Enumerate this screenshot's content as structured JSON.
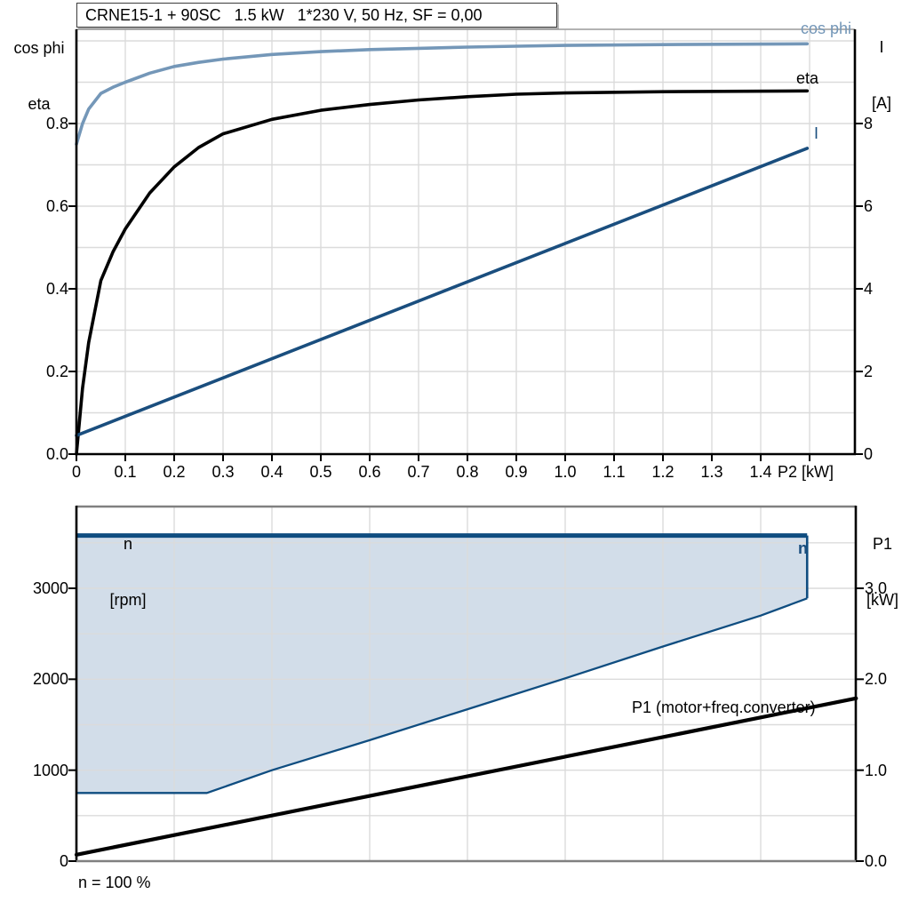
{
  "colors": {
    "cos_phi": "#7497B8",
    "eta": "#000000",
    "current": "#1A4E7E",
    "envelope_border": "#0F4D80",
    "envelope_fill": "#D2DDE9",
    "grid": "#DBDBDB",
    "frame_gray": "#808080",
    "axis_black": "#000000"
  },
  "chart_data": [
    {
      "type": "line",
      "title": "CRNE15-1 + 90SC   1.5 kW   1*230 V, 50 Hz, SF = 0,00",
      "x_axis": {
        "label": "P2 [kW]",
        "min": 0,
        "max": 1.59,
        "tick_values": [
          0,
          0.1,
          0.2,
          0.3,
          0.4,
          0.5,
          0.6,
          0.7,
          0.8,
          0.9,
          1.0,
          1.1,
          1.2,
          1.3,
          1.4,
          1.5
        ],
        "tick_labels": [
          "0",
          "0.1",
          "0.2",
          "0.3",
          "0.4",
          "0.5",
          "0.6",
          "0.7",
          "0.8",
          "0.9",
          "1.0",
          "1.1",
          "1.2",
          "1.3",
          "1.4",
          ""
        ]
      },
      "y_axis_left": {
        "label_line1": "cos phi",
        "label_line2": "eta",
        "min": 0,
        "max": 1.03,
        "tick_values": [
          0,
          0.2,
          0.4,
          0.6,
          0.8
        ],
        "tick_labels": [
          "0.0",
          "0.2",
          "0.4",
          "0.6",
          "0.8"
        ],
        "grid_step": 0.1
      },
      "y_axis_right": {
        "label_line1": "I",
        "label_line2": "[A]",
        "min": 0,
        "max": 10.3,
        "tick_values": [
          0,
          2,
          4,
          6,
          8
        ],
        "tick_labels": [
          "0",
          "2",
          "4",
          "6",
          "8"
        ]
      },
      "grid": true,
      "legend_position": "curve-end-labels",
      "series": [
        {
          "name": "cos phi",
          "axis": "left",
          "color": "#7497B8",
          "x": [
            0,
            0.0125,
            0.025,
            0.05,
            0.075,
            0.1,
            0.15,
            0.2,
            0.25,
            0.3,
            0.4,
            0.5,
            0.6,
            0.7,
            0.8,
            0.9,
            1.0,
            1.2,
            1.495
          ],
          "values": [
            0.75,
            0.8,
            0.835,
            0.873,
            0.888,
            0.9,
            0.922,
            0.938,
            0.948,
            0.956,
            0.967,
            0.974,
            0.979,
            0.982,
            0.985,
            0.987,
            0.989,
            0.991,
            0.993
          ]
        },
        {
          "name": "eta",
          "axis": "left",
          "color": "#000000",
          "x": [
            0,
            0.0125,
            0.025,
            0.05,
            0.075,
            0.1,
            0.15,
            0.2,
            0.25,
            0.3,
            0.4,
            0.5,
            0.6,
            0.7,
            0.8,
            0.9,
            1.0,
            1.2,
            1.495
          ],
          "values": [
            0,
            0.16,
            0.27,
            0.42,
            0.49,
            0.545,
            0.632,
            0.695,
            0.742,
            0.775,
            0.81,
            0.832,
            0.846,
            0.857,
            0.865,
            0.871,
            0.874,
            0.877,
            0.879
          ]
        },
        {
          "name": "I",
          "axis": "right",
          "color": "#1A4E7E",
          "x": [
            0,
            1.495
          ],
          "values": [
            0.45,
            7.4
          ]
        }
      ]
    },
    {
      "type": "area",
      "title": "",
      "x_axis": {
        "label": "",
        "min": 0,
        "max": 1.595,
        "grid_step": 0.2
      },
      "y_axis_left": {
        "label_line1": "n",
        "label_line2": "[rpm]",
        "min": 0,
        "max": 3900,
        "tick_values": [
          0,
          1000,
          2000,
          3000
        ],
        "tick_labels": [
          "0",
          "1000",
          "2000",
          "3000"
        ],
        "grid_step": 500
      },
      "y_axis_right": {
        "label_line1": "P1",
        "label_line2": "[kW]",
        "min": 0,
        "max": 3.9,
        "tick_values": [
          0,
          1,
          2,
          3
        ],
        "tick_labels": [
          "0.0",
          "1.0",
          "2.0",
          "3.0"
        ]
      },
      "annotation": "n = 100 %",
      "series": [
        {
          "name": "n",
          "kind": "envelope",
          "axis": "left",
          "color": "#0F4D80",
          "fill": "#D2DDE9",
          "n_max": 3580,
          "p2_max": 1.495,
          "lower_boundary": [
            [
              0,
              750
            ],
            [
              0.267,
              750
            ],
            [
              0.4,
              1000
            ],
            [
              0.6,
              1330
            ],
            [
              0.8,
              1670
            ],
            [
              1.0,
              2010
            ],
            [
              1.2,
              2360
            ],
            [
              1.4,
              2700
            ],
            [
              1.495,
              2890
            ]
          ]
        },
        {
          "name": "P1 (motor+freq.converter)",
          "kind": "line",
          "axis": "right",
          "color": "#000000",
          "points": [
            [
              0,
              0.07
            ],
            [
              1.595,
              1.79
            ]
          ]
        }
      ]
    }
  ]
}
